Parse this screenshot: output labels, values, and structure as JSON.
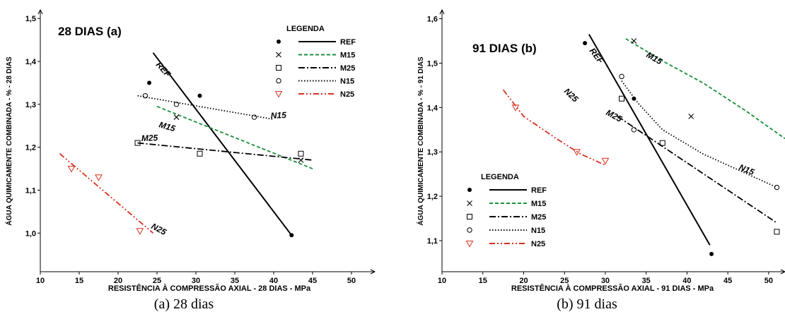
{
  "captions": [
    "(a) 28 dias",
    "(b) 91 dias"
  ],
  "chart_data": [
    {
      "type": "scatter",
      "title": "28 DIAS (a)",
      "xlabel": "RESISTÊNCIA À COMPRESSÃO AXIAL - 28 DIAS - MPa",
      "ylabel": "ÁGUA QUIMICAMENTE COMBINADA - % - 28 DIAS",
      "xlim": [
        10,
        53
      ],
      "ylim": [
        0.91,
        1.52
      ],
      "x_ticks": [
        10,
        15,
        20,
        25,
        30,
        35,
        40,
        45,
        50
      ],
      "y_ticks": [
        1.0,
        1.1,
        1.2,
        1.3,
        1.4,
        1.5
      ],
      "y_tick_labels": [
        "1,0",
        "1,1",
        "1,2",
        "1,3",
        "1,4",
        "1,5"
      ],
      "legend_title": "LEGENDA",
      "legend_position": "top-right",
      "grid": false,
      "series": [
        {
          "name": "REF",
          "color": "#000000",
          "marker": "dot",
          "dash": "solid",
          "points": [
            [
              24,
              1.35
            ],
            [
              30.5,
              1.32
            ],
            [
              42.3,
              0.995
            ]
          ],
          "line": [
            [
              24.5,
              1.42
            ],
            [
              42.3,
              0.995
            ]
          ],
          "label": "REF"
        },
        {
          "name": "M15",
          "color": "#1a8f3a",
          "marker": "x",
          "dash": "dashed",
          "points": [
            [
              27.5,
              1.27
            ],
            [
              43.5,
              1.17
            ]
          ],
          "line": [
            [
              25,
              1.295
            ],
            [
              45,
              1.15
            ]
          ],
          "label": "M15"
        },
        {
          "name": "M25",
          "color": "#000000",
          "marker": "square",
          "dash": "dashdot",
          "points": [
            [
              22.5,
              1.21
            ],
            [
              30.5,
              1.185
            ],
            [
              43.5,
              1.185
            ]
          ],
          "line": [
            [
              22.5,
              1.21
            ],
            [
              45,
              1.17
            ]
          ],
          "label": "M25"
        },
        {
          "name": "N15",
          "color": "#000000",
          "marker": "circle",
          "dash": "dotted",
          "points": [
            [
              23.5,
              1.32
            ],
            [
              27.5,
              1.3
            ],
            [
              37.5,
              1.27
            ]
          ],
          "line": [
            [
              22.5,
              1.32
            ],
            [
              40,
              1.265
            ]
          ],
          "label": "N15"
        },
        {
          "name": "N25",
          "color": "#d9301e",
          "marker": "triangle",
          "dash": "dashdotdot",
          "points": [
            [
              14,
              1.15
            ],
            [
              17.5,
              1.13
            ],
            [
              22.8,
              1.005
            ]
          ],
          "line": [
            [
              12.5,
              1.185
            ],
            [
              24.5,
              1.0
            ]
          ],
          "label": "N25"
        }
      ]
    },
    {
      "type": "scatter",
      "title": "91 DIAS (b)",
      "xlabel": "RESISTÊNCIA À COMPRESSÃO AXIAL - 91 DIAS - MPa",
      "ylabel": "ÁGUA QUIMICAMENTE COMBINADA - % - 91 DIAS",
      "xlim": [
        10,
        52
      ],
      "ylim": [
        1.03,
        1.62
      ],
      "x_ticks": [
        10,
        15,
        20,
        25,
        30,
        35,
        40,
        45,
        50
      ],
      "y_ticks": [
        1.1,
        1.2,
        1.3,
        1.4,
        1.5,
        1.6
      ],
      "y_tick_labels": [
        "1,1",
        "1,2",
        "1,3",
        "1,4",
        "1,5",
        "1,6"
      ],
      "legend_title": "LEGENDA",
      "legend_position": "bottom-left",
      "grid": false,
      "series": [
        {
          "name": "REF",
          "color": "#000000",
          "marker": "dot",
          "dash": "solid",
          "points": [
            [
              27.5,
              1.545
            ],
            [
              33.5,
              1.42
            ],
            [
              43,
              1.07
            ]
          ],
          "line": [
            [
              28,
              1.565
            ],
            [
              42.8,
              1.09
            ]
          ],
          "label": "REF"
        },
        {
          "name": "M15",
          "color": "#1a8f3a",
          "marker": "x",
          "dash": "dashed",
          "points": [
            [
              33.5,
              1.55
            ],
            [
              40.5,
              1.38
            ]
          ],
          "line": [
            [
              32.5,
              1.555
            ],
            [
              37,
              1.505
            ],
            [
              42,
              1.455
            ],
            [
              47,
              1.395
            ],
            [
              52,
              1.33
            ]
          ],
          "label": "M15"
        },
        {
          "name": "M25",
          "color": "#000000",
          "marker": "square",
          "dash": "dashdot",
          "points": [
            [
              32,
              1.42
            ],
            [
              37,
              1.32
            ],
            [
              51,
              1.12
            ]
          ],
          "line": [
            [
              31.5,
              1.38
            ],
            [
              51,
              1.14
            ]
          ],
          "label": "M25"
        },
        {
          "name": "N15",
          "color": "#000000",
          "marker": "circle",
          "dash": "dotted",
          "points": [
            [
              32,
              1.47
            ],
            [
              33.5,
              1.35
            ],
            [
              51,
              1.22
            ]
          ],
          "line": [
            [
              32,
              1.46
            ],
            [
              34,
              1.41
            ],
            [
              37,
              1.35
            ],
            [
              42,
              1.295
            ],
            [
              51,
              1.22
            ]
          ],
          "label": "N15"
        },
        {
          "name": "N25",
          "color": "#d9301e",
          "marker": "triangle",
          "dash": "dashdotdot",
          "points": [
            [
              19,
              1.4
            ],
            [
              26.5,
              1.3
            ],
            [
              30,
              1.28
            ]
          ],
          "line": [
            [
              17.5,
              1.44
            ],
            [
              20,
              1.38
            ],
            [
              24,
              1.33
            ],
            [
              27,
              1.295
            ],
            [
              30,
              1.27
            ]
          ],
          "label": "N25"
        }
      ]
    }
  ]
}
